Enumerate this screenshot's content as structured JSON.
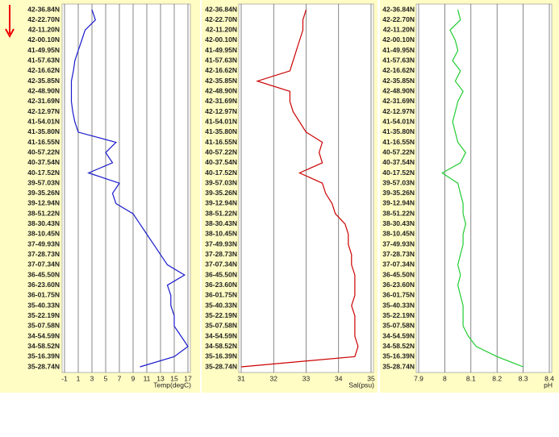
{
  "chart_data": [
    {
      "type": "line",
      "xlabel": "Temp(degC)",
      "color": "#1a1acc",
      "categories": [
        "42-36.84N",
        "42-22.70N",
        "42-11.20N",
        "42-00.10N",
        "41-49.95N",
        "41-57.63N",
        "42-16.62N",
        "42-35.85N",
        "42-48.90N",
        "42-31.69N",
        "42-12.97N",
        "41-54.01N",
        "41-35.80N",
        "41-16.55N",
        "40-57.22N",
        "40-37.54N",
        "40-17.52N",
        "39-57.03N",
        "39-35.26N",
        "39-12.94N",
        "38-51.22N",
        "38-30.43N",
        "38-10.45N",
        "37-49.93N",
        "37-28.73N",
        "37-07.34N",
        "36-45.50N",
        "36-23.60N",
        "36-01.75N",
        "35-40.33N",
        "35-22.19N",
        "35-07.58N",
        "34-54.59N",
        "34-58.52N",
        "35-16.39N",
        "35-28.74N"
      ],
      "values": [
        3,
        3.5,
        2,
        1.5,
        1,
        0.5,
        0.3,
        0,
        0,
        0,
        0.2,
        0.5,
        1,
        6.5,
        5,
        6,
        2.5,
        7,
        6,
        6.5,
        9,
        10,
        11,
        12,
        13,
        14,
        16.5,
        14,
        14.5,
        14.5,
        15,
        15,
        16,
        17,
        15,
        10
      ],
      "xlim": [
        -1,
        17
      ],
      "xticks": [
        -1,
        1,
        3,
        5,
        7,
        9,
        11,
        13,
        15,
        17
      ]
    },
    {
      "type": "line",
      "xlabel": "Sal(psu)",
      "color": "#cc0000",
      "categories": [
        "42-36.84N",
        "42-22.70N",
        "42-11.20N",
        "42-00.10N",
        "41-49.95N",
        "41-57.63N",
        "42-16.62N",
        "42-35.85N",
        "42-48.90N",
        "42-31.69N",
        "42-12.97N",
        "41-54.01N",
        "41-35.80N",
        "41-16.55N",
        "40-57.22N",
        "40-37.54N",
        "40-17.52N",
        "39-57.03N",
        "39-35.26N",
        "39-12.94N",
        "38-51.22N",
        "38-30.43N",
        "38-10.45N",
        "37-49.93N",
        "37-28.73N",
        "37-07.34N",
        "36-45.50N",
        "36-23.60N",
        "36-01.75N",
        "35-40.33N",
        "35-22.19N",
        "35-07.58N",
        "34-54.59N",
        "34-58.52N",
        "35-16.39N",
        "35-28.74N"
      ],
      "values": [
        33,
        32.9,
        32.9,
        32.8,
        32.7,
        32.6,
        32.5,
        31.5,
        32.5,
        32.5,
        32.6,
        32.8,
        33,
        33.5,
        33.4,
        33.5,
        32.8,
        33.5,
        33.6,
        33.8,
        33.9,
        34.2,
        34.3,
        34.3,
        34.4,
        34.4,
        34.5,
        34.5,
        34.5,
        34.4,
        34.5,
        34.5,
        34.5,
        34.6,
        34.5,
        31
      ],
      "xlim": [
        31,
        35
      ],
      "xticks": [
        31,
        32,
        33,
        34,
        35
      ]
    },
    {
      "type": "line",
      "xlabel": "pH",
      "color": "#22cc33",
      "categories": [
        "42-36.84N",
        "42-22.70N",
        "42-11.20N",
        "42-00.10N",
        "41-49.95N",
        "41-57.63N",
        "42-16.62N",
        "42-35.85N",
        "42-48.90N",
        "42-31.69N",
        "42-12.97N",
        "41-54.01N",
        "41-35.80N",
        "41-16.55N",
        "40-57.22N",
        "40-37.54N",
        "40-17.52N",
        "39-57.03N",
        "39-35.26N",
        "39-12.94N",
        "38-51.22N",
        "38-30.43N",
        "38-10.45N",
        "37-49.93N",
        "37-28.73N",
        "37-07.34N",
        "36-45.50N",
        "36-23.60N",
        "36-01.75N",
        "35-40.33N",
        "35-22.19N",
        "35-07.58N",
        "34-54.59N",
        "34-58.52N",
        "35-16.39N",
        "35-28.74N"
      ],
      "values": [
        8.05,
        8.06,
        8.02,
        8.04,
        8.05,
        8.03,
        8.06,
        8.04,
        8.07,
        8.05,
        8.04,
        8.03,
        8.04,
        8.05,
        8.08,
        8.06,
        7.99,
        8.05,
        8.06,
        8.07,
        8.07,
        8.08,
        8.07,
        8.07,
        8.06,
        8.05,
        8.06,
        8.05,
        8.06,
        8.07,
        8.07,
        8.07,
        8.09,
        8.12,
        8.2,
        8.3
      ],
      "xlim": [
        7.9,
        8.4
      ],
      "xticks": [
        7.9,
        8,
        8.1,
        8.2,
        8.3,
        8.4
      ]
    }
  ]
}
